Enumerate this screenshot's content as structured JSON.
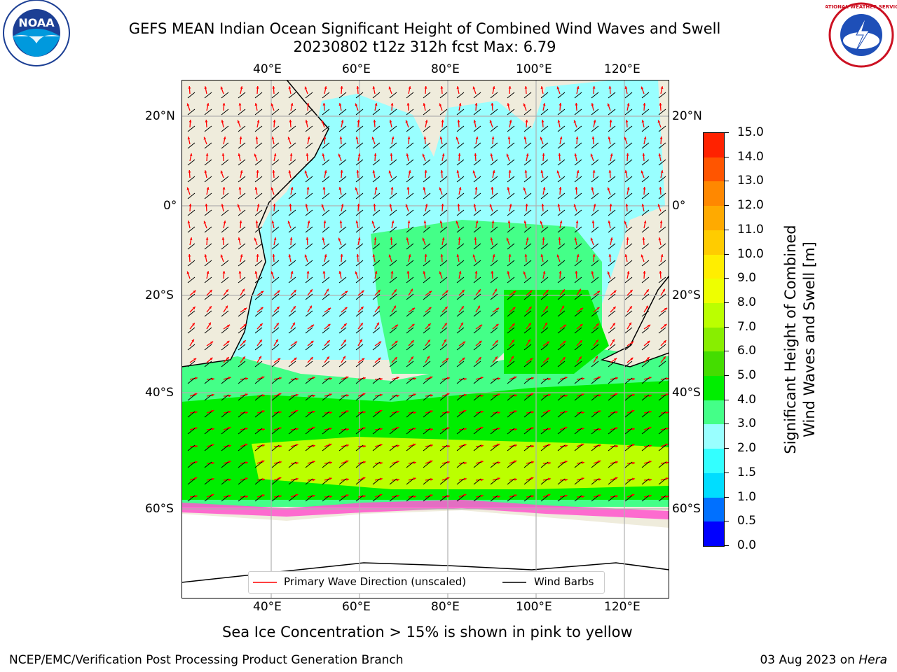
{
  "title": {
    "line1": "GEFS MEAN Indian Ocean Significant Height of Combined Wind Waves and Swell",
    "line2": "20230802 t12z 312h fcst   Max: 6.79"
  },
  "logos": {
    "noaa_text": "NOAA",
    "nws_text": "NATIONAL WEATHER SERVICE"
  },
  "map": {
    "lon_ticks": [
      "40°E",
      "60°E",
      "80°E",
      "100°E",
      "120°E"
    ],
    "lat_ticks_left": [
      "20°N",
      "0°",
      "20°S",
      "40°S",
      "60°S"
    ],
    "lat_ticks_right": [
      "20°N",
      "0°",
      "20°S",
      "40°S",
      "60°S"
    ],
    "land_color": "#efecdc",
    "grid_color": "#b0b0b0"
  },
  "legend": {
    "wave_label": "Primary Wave Direction (unscaled)",
    "barb_label": "Wind Barbs",
    "wave_color": "#ff0000",
    "barb_color": "#000000"
  },
  "colorbar": {
    "title_line1": "Significant Height of Combined",
    "title_line2": "Wind Waves and Swell [m]",
    "ticks": [
      "0.0",
      "0.5",
      "1.0",
      "1.5",
      "2.0",
      "3.0",
      "4.0",
      "5.0",
      "6.0",
      "7.0",
      "8.0",
      "9.0",
      "10.0",
      "11.0",
      "12.0",
      "13.0",
      "14.0",
      "15.0"
    ],
    "colors": [
      "#0000ff",
      "#0070ff",
      "#00ddff",
      "#33ffff",
      "#99ffff",
      "#44ff88",
      "#00ee00",
      "#44dd00",
      "#88ee00",
      "#bbff00",
      "#eeff00",
      "#ffee00",
      "#ffcc00",
      "#ffaa00",
      "#ff8800",
      "#ff5500",
      "#ff2200"
    ]
  },
  "caption": "Sea Ice Concentration > 15% is shown in pink to yellow",
  "footer": {
    "left": "NCEP/EMC/Verification Post Processing Product Generation Branch",
    "right_prefix": "03 Aug 2023 on ",
    "right_host": "Hera"
  }
}
